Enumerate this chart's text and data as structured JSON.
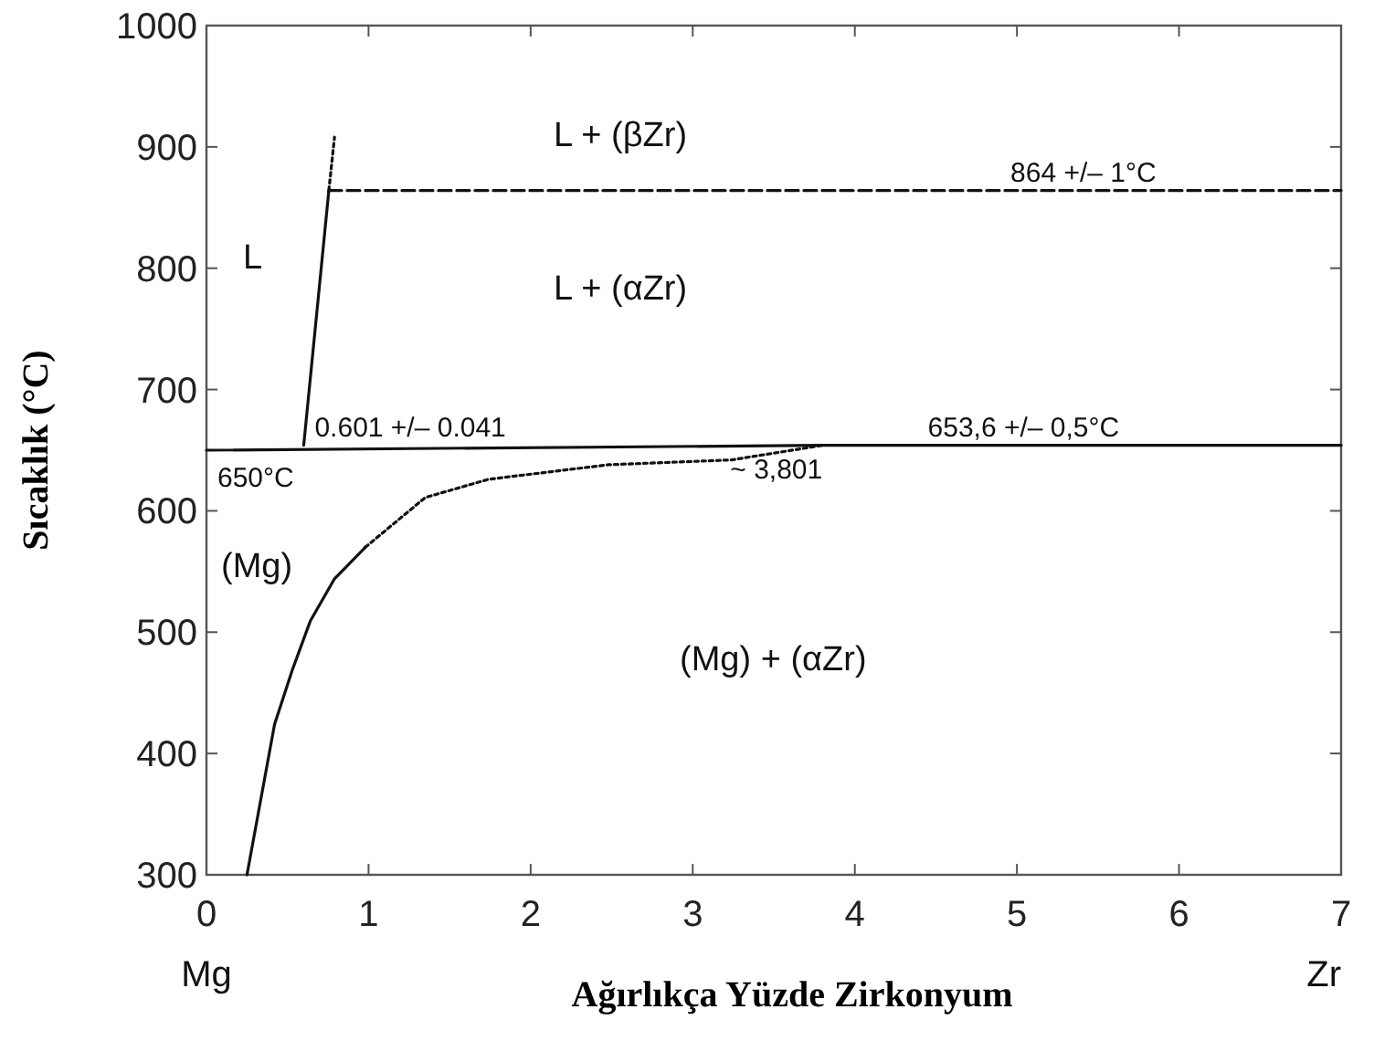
{
  "chart_data": {
    "type": "line",
    "xlabel": "Ağırlıkça Yüzde Zirkonyum",
    "ylabel": "Sıcaklık (°C)",
    "xlim": [
      0,
      7
    ],
    "xticks": [
      0,
      1,
      2,
      3,
      4,
      5,
      6,
      7
    ],
    "ylim": [
      300,
      1000
    ],
    "yticks": [
      300,
      400,
      500,
      600,
      700,
      800,
      900,
      1000
    ],
    "grid": false,
    "marker": "none",
    "series": [
      {
        "color": "#111111",
        "line_style": "solid",
        "x": [
          0.6,
          0.755
        ],
        "values": [
          654,
          864
        ]
      },
      {
        "color": "#111111",
        "line_style": "dotted",
        "x": [
          0.755,
          0.79
        ],
        "values": [
          864,
          908
        ]
      },
      {
        "color": "#111111",
        "line_style": "dashed",
        "x": [
          0.755,
          7
        ],
        "values": [
          864,
          864
        ]
      },
      {
        "color": "#111111",
        "line_style": "solid",
        "x": [
          0,
          3.8,
          7
        ],
        "values": [
          650,
          654,
          654
        ]
      },
      {
        "color": "#111111",
        "line_style": "solid",
        "x": [
          0.25,
          0.42,
          0.53,
          0.64,
          0.79,
          0.98
        ],
        "values": [
          300,
          424,
          469,
          509,
          544,
          570
        ]
      },
      {
        "color": "#111111",
        "line_style": "dotted",
        "x": [
          0.98,
          1.35,
          1.74,
          2.48,
          3.24,
          3.8
        ],
        "values": [
          570,
          611,
          626,
          638,
          642,
          654
        ]
      }
    ],
    "annotations": [
      "L + (βZr)",
      {
        "text": "864 +/– 1°C",
        "x": 4.96,
        "y": 864
      },
      "L",
      "L + (αZr)",
      {
        "text": "0.601 +/– 0.041",
        "x": 0.6,
        "y": 654
      },
      {
        "text": "653,6 +/– 0,5°C",
        "x": 4.45,
        "y": 654
      },
      {
        "text": "650°C",
        "x": 0,
        "y": 650
      },
      {
        "text": "~ 3,801",
        "x": 3.8,
        "y": 654
      },
      "(Mg)",
      "(Mg) + (αZr)",
      "Mg",
      "Zr"
    ]
  }
}
